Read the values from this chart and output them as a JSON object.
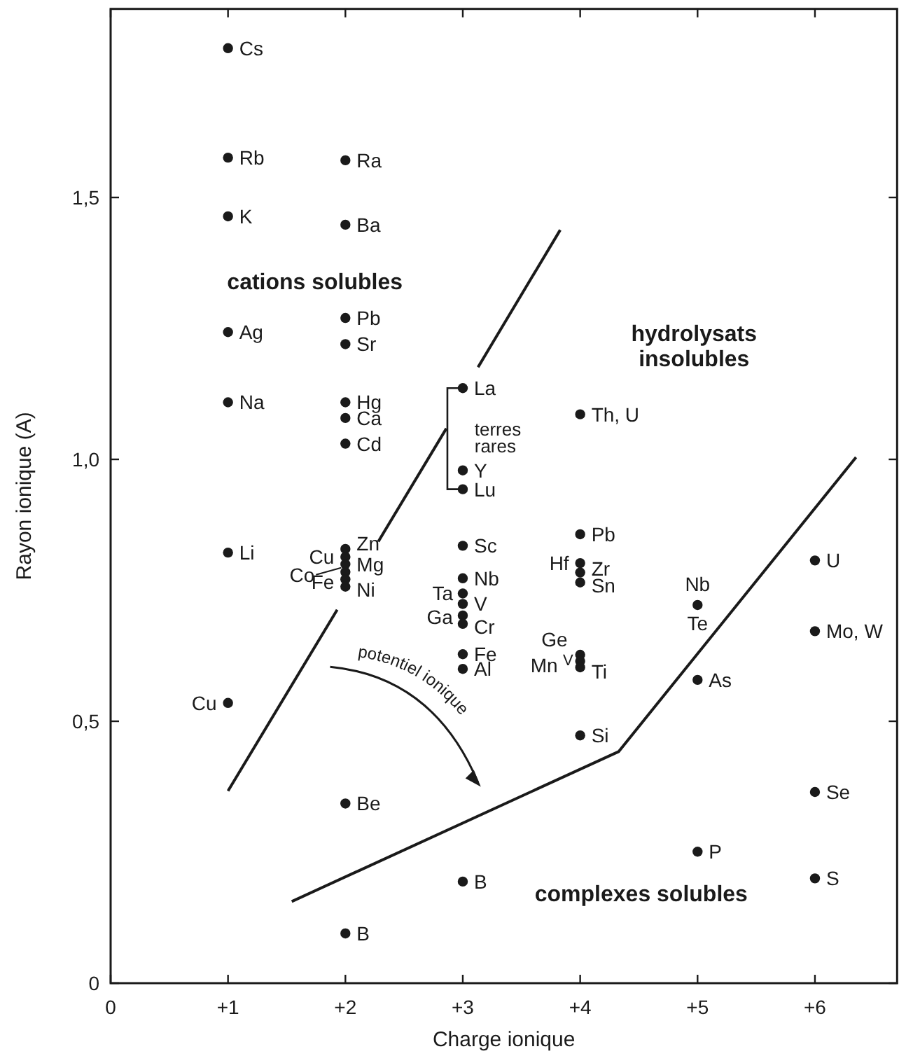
{
  "chart_data": {
    "type": "scatter",
    "xlabel": "Charge ionique",
    "ylabel": "Rayon ionique (A)",
    "xlim": [
      0,
      6.7
    ],
    "ylim": [
      0,
      1.86
    ],
    "xticks": [
      0,
      {
        "value": 1,
        "label": "+1"
      },
      {
        "value": 2,
        "label": "+2"
      },
      {
        "value": 3,
        "label": "+3"
      },
      {
        "value": 4,
        "label": "+4"
      },
      {
        "value": 5,
        "label": "+5"
      },
      {
        "value": 6,
        "label": "+6"
      }
    ],
    "yticks": [
      0,
      {
        "value": 0.5,
        "label": "0,5"
      },
      {
        "value": 1,
        "label": "1,0"
      },
      {
        "value": 1.5,
        "label": "1,5"
      }
    ],
    "grid": false,
    "marker": "circle",
    "series": [
      {
        "color": "#1a1a1a",
        "x": [
          1,
          1,
          1,
          1,
          1,
          1,
          1,
          2,
          2,
          2,
          2,
          2,
          2,
          2,
          2,
          2,
          2,
          2,
          2,
          2,
          2,
          2,
          3,
          3,
          3,
          3,
          3,
          3,
          3,
          3,
          3,
          3,
          3,
          3,
          4,
          4,
          4,
          4,
          4,
          4,
          4,
          4,
          4,
          5,
          5,
          5,
          6,
          6,
          6,
          6
        ],
        "values": [
          1.785,
          1.576,
          1.464,
          1.243,
          1.109,
          0.822,
          0.535,
          1.571,
          1.448,
          1.27,
          1.22,
          1.109,
          1.079,
          1.03,
          0.829,
          0.814,
          0.8,
          0.785,
          0.771,
          0.757,
          0.343,
          0.095,
          1.136,
          0.979,
          0.943,
          0.835,
          0.773,
          0.744,
          0.724,
          0.702,
          0.686,
          0.628,
          0.6,
          0.194,
          1.086,
          0.857,
          0.802,
          0.784,
          0.765,
          0.627,
          0.615,
          0.603,
          0.473,
          0.722,
          0.579,
          0.251,
          0.807,
          0.672,
          0.365,
          0.2
        ]
      },
      {
        "type": "line",
        "color": "#1a1a1a",
        "line_style": "solid",
        "marker": "none",
        "x": [
          1.0,
          1.93
        ],
        "values": [
          0.367,
          0.713
        ]
      },
      {
        "type": "line",
        "color": "#1a1a1a",
        "line_style": "solid",
        "marker": "none",
        "x": [
          2.28,
          2.86
        ],
        "values": [
          0.843,
          1.059
        ]
      },
      {
        "type": "line",
        "color": "#1a1a1a",
        "line_style": "solid",
        "marker": "none",
        "x": [
          3.13,
          3.83
        ],
        "values": [
          1.176,
          1.438
        ]
      },
      {
        "type": "line",
        "color": "#1a1a1a",
        "line_style": "solid",
        "marker": "none",
        "x": [
          1.543,
          4.327,
          6.35
        ],
        "values": [
          0.156,
          0.442,
          1.004
        ]
      }
    ],
    "annotations": [
      {
        "text": "Cs",
        "x": 1,
        "y": 1.785
      },
      {
        "text": "Rb",
        "x": 1,
        "y": 1.576
      },
      {
        "text": "K",
        "x": 1,
        "y": 1.464
      },
      {
        "text": "Ag",
        "x": 1,
        "y": 1.243
      },
      {
        "text": "Na",
        "x": 1,
        "y": 1.109
      },
      {
        "text": "Li",
        "x": 1,
        "y": 0.822
      },
      {
        "text": "Cu",
        "x": 1,
        "y": 0.535
      },
      {
        "text": "Ra",
        "x": 2,
        "y": 1.571
      },
      {
        "text": "Ba",
        "x": 2,
        "y": 1.448
      },
      {
        "text": "Pb",
        "x": 2,
        "y": 1.27
      },
      {
        "text": "Sr",
        "x": 2,
        "y": 1.22
      },
      {
        "text": "Hg",
        "x": 2,
        "y": 1.109
      },
      {
        "text": "Ca",
        "x": 2,
        "y": 1.079
      },
      {
        "text": "Cd",
        "x": 2,
        "y": 1.03
      },
      {
        "text": "Zn",
        "x": 2,
        "y": 0.829
      },
      {
        "text": "Cu",
        "x": 2,
        "y": 0.814
      },
      {
        "text": "Mg",
        "x": 2,
        "y": 0.8
      },
      {
        "text": "Co",
        "x": 2,
        "y": 0.785
      },
      {
        "text": "Fe",
        "x": 2,
        "y": 0.771
      },
      {
        "text": "Ni",
        "x": 2,
        "y": 0.757
      },
      {
        "text": "Be",
        "x": 2,
        "y": 0.343
      },
      {
        "text": "B",
        "x": 2,
        "y": 0.095
      },
      {
        "text": "La",
        "x": 3,
        "y": 1.136
      },
      {
        "text": "Y",
        "x": 3,
        "y": 0.979
      },
      {
        "text": "Lu",
        "x": 3,
        "y": 0.943
      },
      {
        "text": "Sc",
        "x": 3,
        "y": 0.835
      },
      {
        "text": "Nb",
        "x": 3,
        "y": 0.773
      },
      {
        "text": "Ta",
        "x": 3,
        "y": 0.744
      },
      {
        "text": "V",
        "x": 3,
        "y": 0.724
      },
      {
        "text": "Ga",
        "x": 3,
        "y": 0.702
      },
      {
        "text": "Cr",
        "x": 3,
        "y": 0.686
      },
      {
        "text": "Fe",
        "x": 3,
        "y": 0.628
      },
      {
        "text": "Al",
        "x": 3,
        "y": 0.6
      },
      {
        "text": "B",
        "x": 3,
        "y": 0.194
      },
      {
        "text": "Th, U",
        "x": 4,
        "y": 1.086
      },
      {
        "text": "Pb",
        "x": 4,
        "y": 0.857
      },
      {
        "text": "Hf",
        "x": 4,
        "y": 0.802
      },
      {
        "text": "Zr",
        "x": 4,
        "y": 0.784
      },
      {
        "text": "Sn",
        "x": 4,
        "y": 0.765
      },
      {
        "text": "Ge",
        "x": 4,
        "y": 0.627
      },
      {
        "text": "Mn",
        "x": 4,
        "y": 0.615
      },
      {
        "text": "V",
        "x": 4,
        "y": 0.615
      },
      {
        "text": "Ti",
        "x": 4,
        "y": 0.603
      },
      {
        "text": "Si",
        "x": 4,
        "y": 0.473
      },
      {
        "text": "Nb",
        "x": 5,
        "y": 0.722
      },
      {
        "text": "Te",
        "x": 5,
        "y": 0.722
      },
      {
        "text": "As",
        "x": 5,
        "y": 0.579
      },
      {
        "text": "P",
        "x": 5,
        "y": 0.251
      },
      {
        "text": "U",
        "x": 6,
        "y": 0.807
      },
      {
        "text": "Mo, W",
        "x": 6,
        "y": 0.672
      },
      {
        "text": "Se",
        "x": 6,
        "y": 0.365
      },
      {
        "text": "S",
        "x": 6,
        "y": 0.2
      },
      "cations solubles",
      "hydrolysats insolubles",
      "complexes solubles",
      "terres rares",
      "potentiel ionique"
    ]
  }
}
